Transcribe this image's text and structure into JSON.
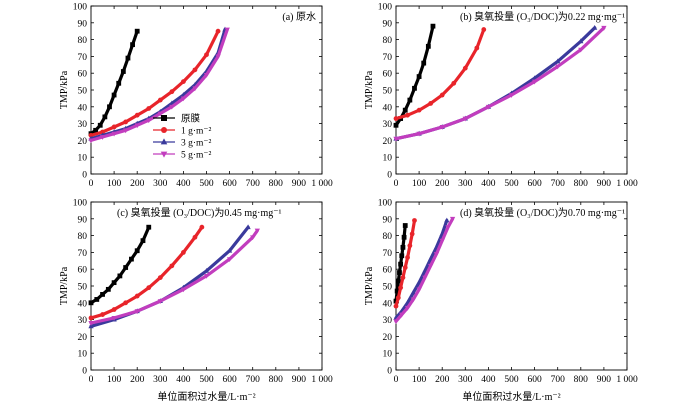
{
  "figure": {
    "shared_ylabel": "TMP/kPa",
    "shared_xlabel": "单位面积过水量/L·m⁻²"
  },
  "chart_data": [
    {
      "type": "line",
      "title": "(a) 原水",
      "xlabel": "",
      "ylabel": "TMP/kPa",
      "xlim": [
        0,
        1000
      ],
      "ylim": [
        0,
        100
      ],
      "xticks": [
        "0",
        "100",
        "200",
        "300",
        "400",
        "500",
        "600",
        "700",
        "800",
        "900",
        "1 000"
      ],
      "yticks": [
        "0",
        "10",
        "20",
        "30",
        "40",
        "50",
        "60",
        "70",
        "80",
        "90",
        "100"
      ],
      "legend": {
        "position": "center-left",
        "entries": [
          "原膜",
          "1 g·m⁻²",
          "3 g·m⁻²",
          "5 g·m⁻²"
        ]
      },
      "series": [
        {
          "name": "原膜",
          "color": "#000000",
          "marker": "square",
          "x": [
            0,
            20,
            40,
            60,
            80,
            100,
            120,
            140,
            160,
            180,
            200
          ],
          "y": [
            24,
            26,
            29,
            34,
            40,
            47,
            54,
            61,
            69,
            77,
            85
          ]
        },
        {
          "name": "1 g·m⁻²",
          "color": "#e8242a",
          "marker": "circle",
          "x": [
            0,
            50,
            100,
            150,
            200,
            250,
            300,
            350,
            400,
            450,
            500,
            550
          ],
          "y": [
            23,
            25,
            28,
            31,
            35,
            39,
            44,
            49,
            55,
            62,
            71,
            85
          ]
        },
        {
          "name": "3 g·m⁻²",
          "color": "#3a3a9c",
          "marker": "triangle-up",
          "x": [
            0,
            50,
            100,
            150,
            200,
            250,
            300,
            350,
            400,
            450,
            500,
            550,
            580
          ],
          "y": [
            21,
            23,
            25,
            27,
            30,
            33,
            37,
            42,
            47,
            53,
            61,
            72,
            86
          ]
        },
        {
          "name": "5 g·m⁻²",
          "color": "#c23dbe",
          "marker": "triangle-down",
          "x": [
            0,
            50,
            100,
            150,
            200,
            250,
            300,
            350,
            400,
            450,
            500,
            550,
            590
          ],
          "y": [
            20,
            22,
            24,
            26,
            29,
            32,
            36,
            40,
            45,
            51,
            59,
            70,
            86
          ]
        }
      ]
    },
    {
      "type": "line",
      "title": "(b) 臭氧投量 (O₃/DOC)为0.22 mg·mg⁻¹",
      "xlabel": "",
      "ylabel": "TMP/kPa",
      "xlim": [
        0,
        1000
      ],
      "ylim": [
        0,
        100
      ],
      "xticks": [
        "0",
        "100",
        "200",
        "300",
        "400",
        "500",
        "600",
        "700",
        "800",
        "900",
        "1 000"
      ],
      "yticks": [
        "0",
        "10",
        "20",
        "30",
        "40",
        "50",
        "60",
        "70",
        "80",
        "90",
        "100"
      ],
      "series": [
        {
          "name": "原膜",
          "color": "#000000",
          "marker": "square",
          "x": [
            0,
            20,
            40,
            60,
            80,
            100,
            120,
            140,
            160
          ],
          "y": [
            29,
            33,
            38,
            44,
            51,
            58,
            66,
            76,
            88
          ]
        },
        {
          "name": "1 g·m⁻²",
          "color": "#e8242a",
          "marker": "circle",
          "x": [
            0,
            50,
            100,
            150,
            200,
            250,
            300,
            350,
            380
          ],
          "y": [
            33,
            35,
            38,
            42,
            47,
            54,
            63,
            75,
            86
          ]
        },
        {
          "name": "3 g·m⁻²",
          "color": "#3a3a9c",
          "marker": "triangle-up",
          "x": [
            0,
            100,
            200,
            300,
            400,
            500,
            600,
            700,
            800,
            860
          ],
          "y": [
            21,
            24,
            28,
            33,
            40,
            48,
            57,
            67,
            79,
            87
          ]
        },
        {
          "name": "5 g·m⁻²",
          "color": "#c23dbe",
          "marker": "triangle-down",
          "x": [
            0,
            100,
            200,
            300,
            400,
            500,
            600,
            700,
            800,
            900
          ],
          "y": [
            21,
            24,
            28,
            33,
            40,
            47,
            55,
            64,
            74,
            87
          ]
        }
      ]
    },
    {
      "type": "line",
      "title": "(c) 臭氧投量 (O₃/DOC)为0.45 mg·mg⁻¹",
      "xlabel": "单位面积过水量/L·m⁻²",
      "ylabel": "TMP/kPa",
      "xlim": [
        0,
        1000
      ],
      "ylim": [
        0,
        100
      ],
      "xticks": [
        "0",
        "100",
        "200",
        "300",
        "400",
        "500",
        "600",
        "700",
        "800",
        "900",
        "1 000"
      ],
      "yticks": [
        "0",
        "10",
        "20",
        "30",
        "40",
        "50",
        "60",
        "70",
        "80",
        "90",
        "100"
      ],
      "series": [
        {
          "name": "原膜",
          "color": "#000000",
          "marker": "square",
          "x": [
            0,
            25,
            50,
            75,
            100,
            125,
            150,
            175,
            200,
            225,
            250
          ],
          "y": [
            40,
            42,
            45,
            48,
            52,
            56,
            61,
            66,
            71,
            77,
            85
          ]
        },
        {
          "name": "1 g·m⁻²",
          "color": "#e8242a",
          "marker": "circle",
          "x": [
            0,
            50,
            100,
            150,
            200,
            250,
            300,
            350,
            400,
            450,
            480
          ],
          "y": [
            31,
            33,
            36,
            40,
            44,
            49,
            55,
            62,
            70,
            79,
            85
          ]
        },
        {
          "name": "3 g·m⁻²",
          "color": "#3a3a9c",
          "marker": "triangle-up",
          "x": [
            0,
            100,
            200,
            300,
            400,
            500,
            600,
            680
          ],
          "y": [
            26,
            30,
            35,
            41,
            49,
            59,
            71,
            85
          ]
        },
        {
          "name": "5 g·m⁻²",
          "color": "#c23dbe",
          "marker": "triangle-down",
          "x": [
            0,
            100,
            200,
            300,
            400,
            500,
            600,
            700,
            720
          ],
          "y": [
            28,
            31,
            35,
            41,
            48,
            56,
            66,
            79,
            83
          ]
        }
      ]
    },
    {
      "type": "line",
      "title": "(d) 臭氧投量 (O₃/DOC)为0.70 mg·mg⁻¹",
      "xlabel": "单位面积过水量/L·m⁻²",
      "ylabel": "TMP/kPa",
      "xlim": [
        0,
        1000
      ],
      "ylim": [
        0,
        100
      ],
      "xticks": [
        "0",
        "100",
        "200",
        "300",
        "400",
        "500",
        "600",
        "700",
        "800",
        "900",
        "1 000"
      ],
      "yticks": [
        "0",
        "10",
        "20",
        "30",
        "40",
        "50",
        "60",
        "70",
        "80",
        "90",
        "100"
      ],
      "series": [
        {
          "name": "原膜",
          "color": "#000000",
          "marker": "square",
          "x": [
            0,
            5,
            10,
            15,
            20,
            25,
            30,
            35,
            40
          ],
          "y": [
            41,
            47,
            53,
            58,
            63,
            68,
            73,
            79,
            86
          ]
        },
        {
          "name": "1 g·m⁻²",
          "color": "#e8242a",
          "marker": "circle",
          "x": [
            0,
            10,
            20,
            30,
            40,
            50,
            60,
            70,
            80
          ],
          "y": [
            38,
            43,
            49,
            55,
            61,
            67,
            74,
            81,
            89
          ]
        },
        {
          "name": "3 g·m⁻²",
          "color": "#3a3a9c",
          "marker": "triangle-up",
          "x": [
            0,
            25,
            50,
            75,
            100,
            125,
            150,
            175,
            200,
            220
          ],
          "y": [
            31,
            35,
            40,
            46,
            52,
            59,
            66,
            73,
            81,
            89
          ]
        },
        {
          "name": "5 g·m⁻²",
          "color": "#c23dbe",
          "marker": "triangle-down",
          "x": [
            0,
            25,
            50,
            75,
            100,
            125,
            150,
            175,
            200,
            225,
            245
          ],
          "y": [
            29,
            33,
            37,
            42,
            48,
            55,
            62,
            69,
            77,
            85,
            90
          ]
        }
      ]
    }
  ]
}
